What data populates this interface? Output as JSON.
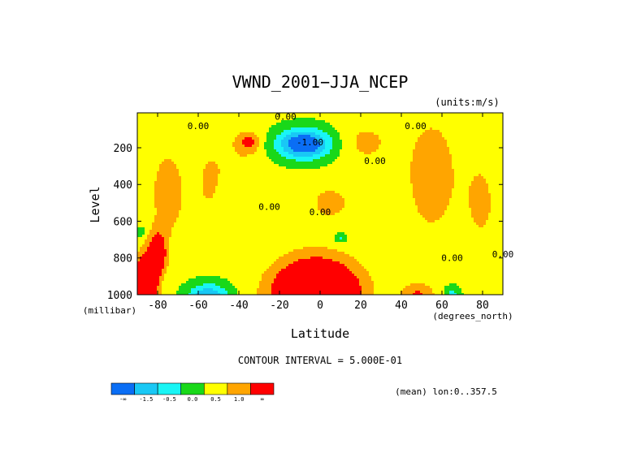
{
  "chart_data": {
    "type": "heatmap",
    "title": "VWND_2001−JJA_NCEP",
    "units_label": "(units:m/s)",
    "xlabel": "Latitude",
    "x_units_label": "(degrees_north)",
    "ylabel": "Level",
    "y_units_label": "(millibar)",
    "xlim": [
      -90,
      90
    ],
    "ylim": [
      1000,
      10
    ],
    "x_ticks": [
      -80,
      -60,
      -40,
      -20,
      0,
      20,
      40,
      60,
      80
    ],
    "y_ticks": [
      200,
      400,
      600,
      800,
      1000
    ],
    "contour_interval_text": "CONTOUR INTERVAL = 5.000E-01",
    "mean_text": "(mean) lon:0..357.5",
    "contour_labels": [
      {
        "text": "0.00",
        "lat": -60,
        "level": 80
      },
      {
        "text": "0.00",
        "lat": -17,
        "level": 30
      },
      {
        "text": "-1.00",
        "lat": -5,
        "level": 170
      },
      {
        "text": "0.00",
        "lat": 47,
        "level": 80
      },
      {
        "text": "0.00",
        "lat": 27,
        "level": 270
      },
      {
        "text": "0.00",
        "lat": -25,
        "level": 520
      },
      {
        "text": "0.00",
        "lat": 0,
        "level": 550
      },
      {
        "text": "0.00",
        "lat": 65,
        "level": 800
      },
      {
        "text": "0.00",
        "lat": 90,
        "level": 780
      }
    ],
    "colorbar": {
      "colors": [
        "#0a6ef5",
        "#19c8f5",
        "#19f5f5",
        "#19d819",
        "#ffff00",
        "#ffa500",
        "#ff0000"
      ],
      "labels": [
        "-∞",
        "-1.5",
        "-0.5",
        "0.0",
        "0.5",
        "1.0",
        "∞"
      ]
    }
  }
}
